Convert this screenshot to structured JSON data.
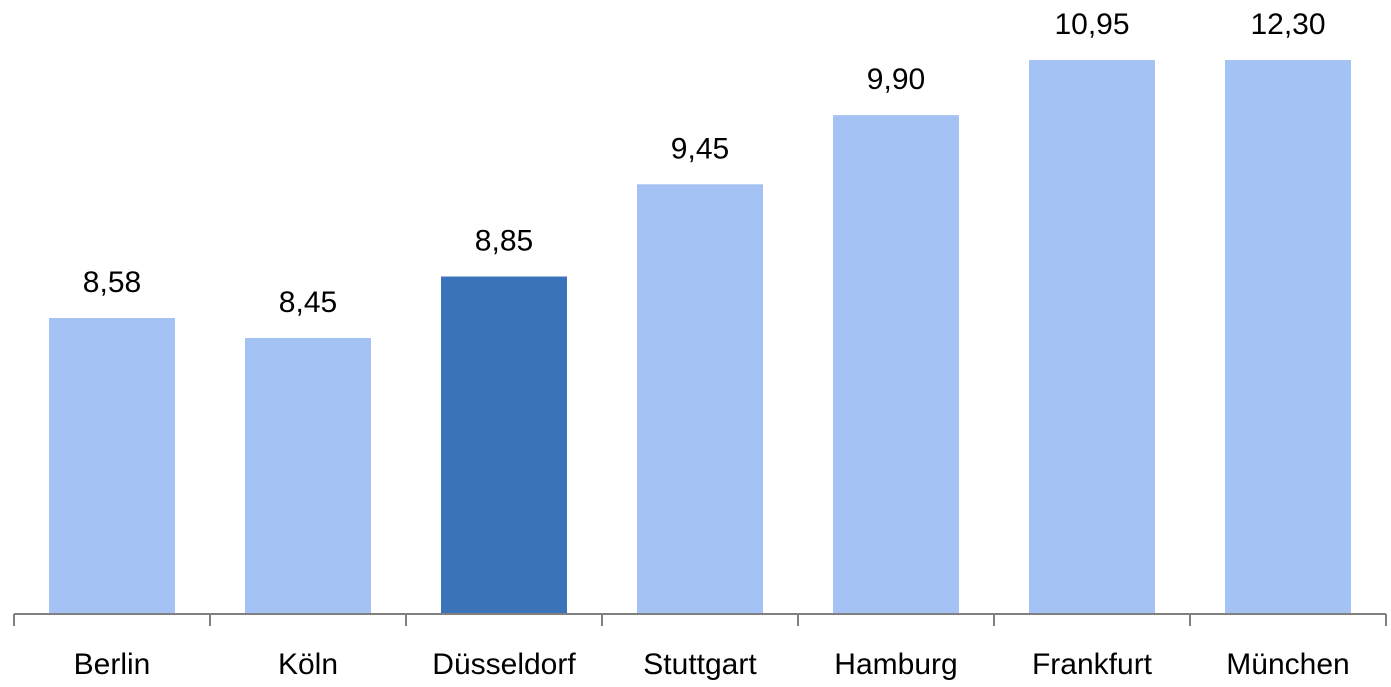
{
  "chart_data": {
    "type": "bar",
    "title": "",
    "xlabel": "",
    "ylabel": "",
    "categories": [
      "Berlin",
      "Köln",
      "Düsseldorf",
      "Stuttgart",
      "Hamburg",
      "Frankfurt",
      "München"
    ],
    "values": [
      8.58,
      8.45,
      8.85,
      9.45,
      9.9,
      10.95,
      12.3
    ],
    "value_labels": [
      "8,58",
      "8,45",
      "8,85",
      "9,45",
      "9,90",
      "10,95",
      "12,30"
    ],
    "highlight_index": 2,
    "colors": {
      "bar": "#a4c3f4",
      "highlight": "#3b73b8",
      "axis": "#808080",
      "text": "#000000"
    },
    "grid": false,
    "legend": "none"
  }
}
